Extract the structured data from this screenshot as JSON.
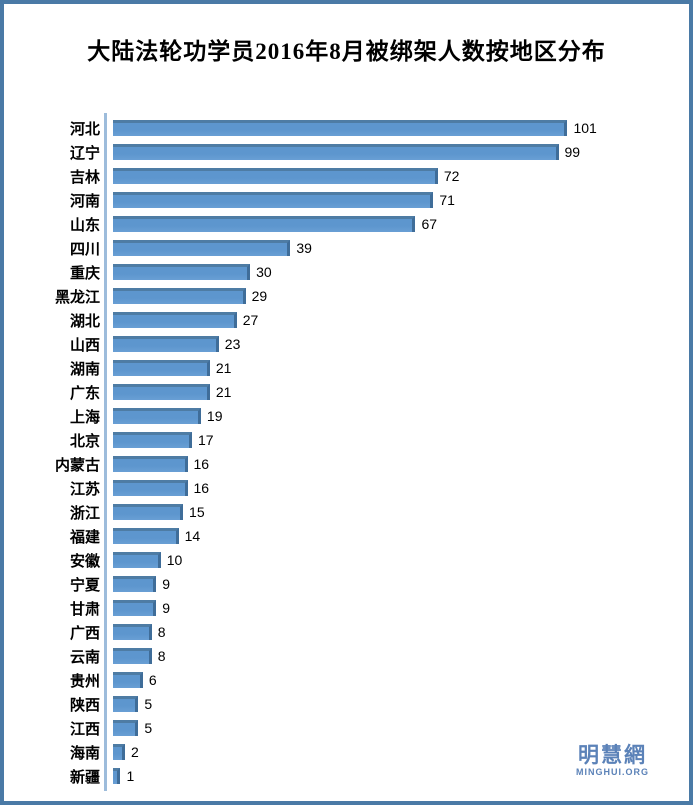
{
  "title": "大陆法轮功学员2016年8月被绑架人数按地区分布",
  "watermark": {
    "cn": "明慧網",
    "en": "MINGHUI.ORG"
  },
  "colors": {
    "frame_border": "#4a7aa6",
    "axis_line": "#9dbcdb",
    "bar_body": "#5d96ce",
    "bar_top_edge": "#4e7ca4",
    "bar_right_edge": "#3f6d99",
    "title_text": "#000000",
    "label_text": "#000000",
    "watermark_text": "#5b82b8",
    "background": "#ffffff"
  },
  "chart_data": {
    "type": "bar",
    "orientation": "horizontal",
    "title": "大陆法轮功学员2016年8月被绑架人数按地区分布",
    "categories": [
      "河北",
      "辽宁",
      "吉林",
      "河南",
      "山东",
      "四川",
      "重庆",
      "黑龙江",
      "湖北",
      "山西",
      "湖南",
      "广东",
      "上海",
      "北京",
      "内蒙古",
      "江苏",
      "浙江",
      "福建",
      "安徽",
      "宁夏",
      "甘肃",
      "广西",
      "云南",
      "贵州",
      "陕西",
      "江西",
      "海南",
      "新疆"
    ],
    "values": [
      101,
      99,
      72,
      71,
      67,
      39,
      30,
      29,
      27,
      23,
      21,
      21,
      19,
      17,
      16,
      16,
      15,
      14,
      10,
      9,
      9,
      8,
      8,
      6,
      5,
      5,
      2,
      1
    ],
    "value_labels_shown": true,
    "xlim": [
      0,
      130
    ],
    "grid": false,
    "legend": false,
    "axis_ticks_shown": false,
    "sorted": "descending"
  }
}
